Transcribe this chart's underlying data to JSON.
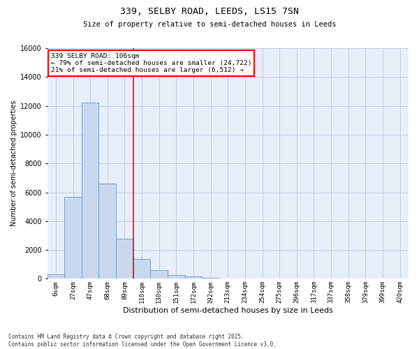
{
  "title_line1": "339, SELBY ROAD, LEEDS, LS15 7SN",
  "title_line2": "Size of property relative to semi-detached houses in Leeds",
  "xlabel": "Distribution of semi-detached houses by size in Leeds",
  "ylabel": "Number of semi-detached properties",
  "footnote": "Contains HM Land Registry data © Crown copyright and database right 2025.\nContains public sector information licensed under the Open Government Licence v3.0.",
  "bin_labels": [
    "6sqm",
    "27sqm",
    "47sqm",
    "68sqm",
    "89sqm",
    "110sqm",
    "130sqm",
    "151sqm",
    "172sqm",
    "192sqm",
    "213sqm",
    "234sqm",
    "254sqm",
    "275sqm",
    "296sqm",
    "317sqm",
    "337sqm",
    "358sqm",
    "379sqm",
    "399sqm",
    "420sqm"
  ],
  "bar_values": [
    300,
    5700,
    12200,
    6600,
    2800,
    1400,
    600,
    250,
    150,
    50,
    20,
    10,
    5,
    5,
    2,
    2,
    1,
    1,
    0,
    0,
    0
  ],
  "bar_color": "#c8d8ee",
  "bar_edge_color": "#6699cc",
  "vline_x": 4.5,
  "vline_color": "red",
  "annotation_text": "339 SELBY ROAD: 106sqm\n← 79% of semi-detached houses are smaller (24,722)\n21% of semi-detached houses are larger (6,512) →",
  "annotation_box_color": "white",
  "annotation_box_edge_color": "red",
  "ylim": [
    0,
    16000
  ],
  "yticks": [
    0,
    2000,
    4000,
    6000,
    8000,
    10000,
    12000,
    14000,
    16000
  ],
  "background_color": "white",
  "axes_background_color": "#e8eef8",
  "grid_color": "#c0cce0"
}
